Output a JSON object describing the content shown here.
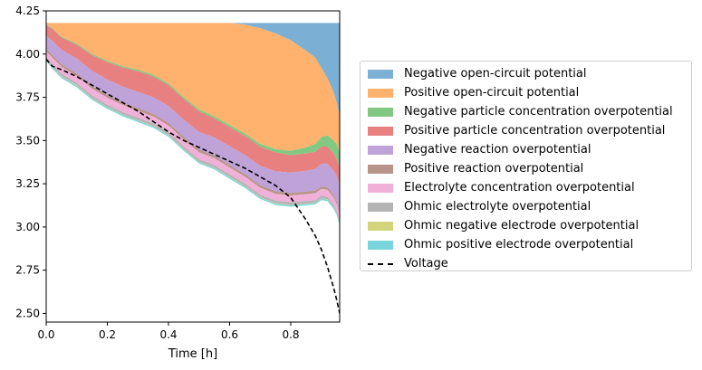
{
  "chart_data": {
    "type": "area",
    "title": "",
    "xlabel": "Time [h]",
    "ylabel": "",
    "xlim": [
      0,
      0.96
    ],
    "ylim": [
      2.45,
      4.25
    ],
    "x_ticks": [
      "0.0",
      "0.2",
      "0.4",
      "0.6",
      "0.8"
    ],
    "y_ticks": [
      "2.50",
      "2.75",
      "3.00",
      "3.25",
      "3.50",
      "3.75",
      "4.00",
      "4.25"
    ],
    "grid": false,
    "legend_position": "right",
    "x": [
      0,
      0.02,
      0.05,
      0.1,
      0.15,
      0.2,
      0.25,
      0.3,
      0.35,
      0.4,
      0.45,
      0.5,
      0.55,
      0.6,
      0.65,
      0.7,
      0.75,
      0.8,
      0.85,
      0.88,
      0.9,
      0.92,
      0.94,
      0.95,
      0.96
    ],
    "stack_top": 4.18,
    "series": [
      {
        "name": "Negative open-circuit potential",
        "color": "#7bafd4",
        "values": [
          0,
          0,
          0,
          0,
          0,
          0,
          0,
          0,
          0,
          0,
          0,
          0,
          0,
          0,
          0.01,
          0.03,
          0.06,
          0.1,
          0.16,
          0.2,
          0.26,
          0.32,
          0.4,
          0.46,
          0.54
        ]
      },
      {
        "name": "Positive open-circuit potential",
        "color": "#ffb26e",
        "values": [
          0.01,
          0.03,
          0.08,
          0.12,
          0.18,
          0.22,
          0.25,
          0.27,
          0.3,
          0.35,
          0.43,
          0.5,
          0.54,
          0.59,
          0.63,
          0.67,
          0.67,
          0.64,
          0.56,
          0.5,
          0.4,
          0.33,
          0.28,
          0.24,
          0.21
        ]
      },
      {
        "name": "Negative particle concentration overpotential",
        "color": "#82c882",
        "values": [
          0.004,
          0.004,
          0.005,
          0.006,
          0.007,
          0.007,
          0.008,
          0.009,
          0.01,
          0.01,
          0.01,
          0.011,
          0.012,
          0.013,
          0.014,
          0.016,
          0.018,
          0.025,
          0.035,
          0.045,
          0.055,
          0.065,
          0.075,
          0.085,
          0.09
        ]
      },
      {
        "name": "Positive particle concentration overpotential",
        "color": "#e88080",
        "values": [
          0.06,
          0.07,
          0.07,
          0.08,
          0.09,
          0.1,
          0.11,
          0.12,
          0.12,
          0.12,
          0.12,
          0.12,
          0.11,
          0.11,
          0.11,
          0.11,
          0.11,
          0.1,
          0.1,
          0.1,
          0.1,
          0.1,
          0.1,
          0.1,
          0.1
        ]
      },
      {
        "name": "Negative reaction overpotential",
        "color": "#bea2d8",
        "values": [
          0.076,
          0.081,
          0.084,
          0.086,
          0.088,
          0.09,
          0.092,
          0.094,
          0.096,
          0.098,
          0.1,
          0.102,
          0.105,
          0.108,
          0.11,
          0.112,
          0.115,
          0.118,
          0.12,
          0.125,
          0.13,
          0.135,
          0.14,
          0.145,
          0.15
        ]
      },
      {
        "name": "Positive reaction overpotential",
        "color": "#b8948a",
        "values": [
          0.015,
          0.015,
          0.015,
          0.015,
          0.015,
          0.015,
          0.015,
          0.015,
          0.015,
          0.015,
          0.015,
          0.015,
          0.015,
          0.015,
          0.015,
          0.015,
          0.015,
          0.015,
          0.015,
          0.015,
          0.015,
          0.015,
          0.015,
          0.015,
          0.015
        ]
      },
      {
        "name": "Electrolyte concentration overpotential",
        "color": "#f0b0d8",
        "values": [
          0.03,
          0.04,
          0.04,
          0.04,
          0.04,
          0.04,
          0.04,
          0.04,
          0.04,
          0.04,
          0.04,
          0.04,
          0.04,
          0.04,
          0.04,
          0.04,
          0.04,
          0.04,
          0.04,
          0.04,
          0.04,
          0.04,
          0.04,
          0.04,
          0.04
        ]
      },
      {
        "name": "Ohmic electrolyte overpotential",
        "color": "#b4b4b4",
        "values": [
          0.015,
          0.015,
          0.015,
          0.015,
          0.015,
          0.015,
          0.015,
          0.015,
          0.015,
          0.015,
          0.015,
          0.015,
          0.015,
          0.015,
          0.015,
          0.015,
          0.015,
          0.015,
          0.015,
          0.015,
          0.015,
          0.015,
          0.015,
          0.015,
          0.015
        ]
      },
      {
        "name": "Ohmic negative electrode overpotential",
        "color": "#d4d47c",
        "values": [
          0.002,
          0.002,
          0.002,
          0.002,
          0.002,
          0.002,
          0.002,
          0.002,
          0.002,
          0.002,
          0.002,
          0.002,
          0.002,
          0.002,
          0.002,
          0.002,
          0.002,
          0.002,
          0.002,
          0.002,
          0.002,
          0.002,
          0.002,
          0.002,
          0.002
        ]
      },
      {
        "name": "Ohmic positive electrode overpotential",
        "color": "#7ad4dc",
        "values": [
          0.008,
          0.008,
          0.008,
          0.008,
          0.008,
          0.008,
          0.008,
          0.008,
          0.008,
          0.008,
          0.008,
          0.008,
          0.008,
          0.008,
          0.008,
          0.008,
          0.008,
          0.008,
          0.008,
          0.008,
          0.008,
          0.008,
          0.008,
          0.008,
          0.008
        ]
      }
    ],
    "voltage": {
      "name": "Voltage",
      "color": "#000000",
      "style": "dashed",
      "values": [
        3.97,
        3.93,
        3.91,
        3.87,
        3.82,
        3.77,
        3.72,
        3.67,
        3.61,
        3.55,
        3.5,
        3.46,
        3.42,
        3.38,
        3.34,
        3.29,
        3.24,
        3.17,
        3.04,
        2.95,
        2.87,
        2.77,
        2.65,
        2.58,
        2.5
      ]
    }
  }
}
